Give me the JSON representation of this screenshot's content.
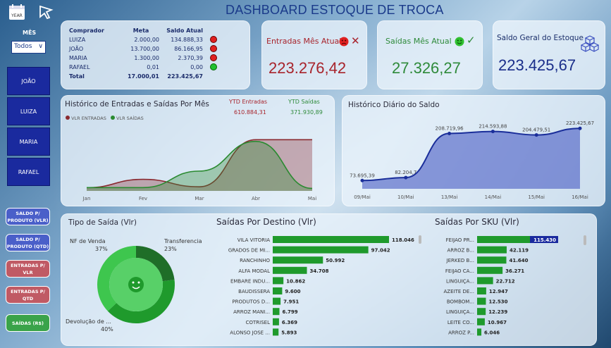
{
  "header": {
    "title": "DASHBOARD ESTOQUE DE TROCA",
    "year_icon_label": "YEAR"
  },
  "filter": {
    "label": "MÊS",
    "value": "Todos"
  },
  "nav": [
    "JOÃO",
    "LUIZA",
    "MARIA",
    "RAFAEL"
  ],
  "side_buttons": [
    {
      "label": "SALDO P/ PRODUTO (VLR)",
      "color": "#4a5fc9"
    },
    {
      "label": "SALDO P/ PRODUTO (QTD)",
      "color": "#4a5fc9"
    },
    {
      "label": "ENTRADAS P/ VLR",
      "color": "#c05a64"
    },
    {
      "label": "ENTRADAS P/ QTD",
      "color": "#c05a64"
    },
    {
      "label": "SAÍDAS (R$)",
      "color": "#3aa34a"
    }
  ],
  "buyers_table": {
    "headers": [
      "Comprador",
      "Meta",
      "Saldo Atual"
    ],
    "rows": [
      {
        "name": "LUIZA",
        "meta": "2.000,00",
        "saldo": "134.888,33",
        "status": "red"
      },
      {
        "name": "JOÃO",
        "meta": "13.700,00",
        "saldo": "86.166,95",
        "status": "red"
      },
      {
        "name": "MARIA",
        "meta": "1.300,00",
        "saldo": "2.370,39",
        "status": "red"
      },
      {
        "name": "RAFAEL",
        "meta": "0,01",
        "saldo": "0,00",
        "status": "green"
      }
    ],
    "total": {
      "label": "Total",
      "meta": "17.000,01",
      "saldo": "223.425,67"
    }
  },
  "kpis": {
    "entradas": {
      "label": "Entradas Mês Atual",
      "value": "223.276,42",
      "color": "#a8242c"
    },
    "saidas": {
      "label": "Saídas Mês Atual",
      "value": "27.326,27",
      "color": "#2e8a3a"
    },
    "saldo": {
      "label": "Saldo Geral do Estoque",
      "value": "223.425,67",
      "color": "#1a2e8a"
    }
  },
  "hist_chart": {
    "title": "Histórico de Entradas e Saídas Por Mês",
    "ytd_entradas_label": "YTD Entradas",
    "ytd_entradas_value": "610.884,31",
    "ytd_saidas_label": "YTD Saídas",
    "ytd_saidas_value": "371.930,89",
    "legend": [
      "VLR ENTRADAS",
      "VLR SAÍDAS"
    ]
  },
  "daily_chart": {
    "title": "Histórico Diário do Saldo"
  },
  "pie": {
    "title": "Tipo de Saída (Vlr)",
    "labels": [
      {
        "name": "NF de Venda",
        "pct": "37%"
      },
      {
        "name": "Transferencia",
        "pct": "23%"
      },
      {
        "name": "Devolução de ...",
        "pct": "40%"
      }
    ]
  },
  "destino": {
    "title": "Saídas Por Destino (Vlr)"
  },
  "sku": {
    "title": "Saídas Por SKU (Vlr)"
  },
  "chart_data": [
    {
      "type": "area",
      "title": "Histórico de Entradas e Saídas Por Mês",
      "categories": [
        "Jan",
        "Fev",
        "Mar",
        "Abr",
        "Mai"
      ],
      "series": [
        {
          "name": "VLR ENTRADAS",
          "values": [
            20000,
            70000,
            25000,
            310000,
            310000
          ],
          "color": "#8a2a30"
        },
        {
          "name": "VLR SAÍDAS",
          "values": [
            20000,
            20000,
            120000,
            300000,
            15000
          ],
          "color": "#2a8a30"
        }
      ]
    },
    {
      "type": "area",
      "title": "Histórico Diário do Saldo",
      "x": [
        "09/Mai",
        "10/Mai",
        "13/Mai",
        "14/Mai",
        "15/Mai",
        "16/Mai"
      ],
      "values": [
        73695.39,
        82204.7,
        208719.96,
        214593.88,
        204479.51,
        223425.67
      ],
      "labels": [
        "73.695,39",
        "82.204,7",
        "208.719,96",
        "214.593,88",
        "204.479,51",
        "223.425,67"
      ]
    },
    {
      "type": "pie",
      "title": "Tipo de Saída (Vlr)",
      "categories": [
        "NF de Venda",
        "Transferencia",
        "Devolução de ..."
      ],
      "values": [
        37,
        23,
        40
      ]
    },
    {
      "type": "bar",
      "title": "Saídas Por Destino (Vlr)",
      "categories": [
        "VILA VITORIA",
        "GRADOS DE MI...",
        "RANCHINHO",
        "ALFA MODAL",
        "EMBARE INDU...",
        "BAUDISSERA",
        "PRODUTOS D...",
        "ARROZ MANI...",
        "COTRISEL",
        "ALONSO JOSE ..."
      ],
      "values": [
        118046,
        97042,
        50992,
        34708,
        10862,
        9600,
        7951,
        6799,
        6369,
        5893
      ],
      "labels": [
        "118.046",
        "97.042",
        "50.992",
        "34.708",
        "10.862",
        "9.600",
        "7.951",
        "6.799",
        "6.369",
        "5.893"
      ]
    },
    {
      "type": "bar",
      "title": "Saídas Por SKU (Vlr)",
      "categories": [
        "FEIJAO PR...",
        "ARROZ B...",
        "JERKED B...",
        "FEIJAO CA...",
        "LINGUIÇA...",
        "AZEITE DE...",
        "BOMBOM...",
        "LINGUIÇA...",
        "LEITE CO...",
        "ARROZ P..."
      ],
      "values": [
        115430,
        42119,
        41640,
        36271,
        22712,
        12947,
        12530,
        12239,
        10967,
        6046
      ],
      "labels": [
        "115.430",
        "42.119",
        "41.640",
        "36.271",
        "22.712",
        "12.947",
        "12.530",
        "12.239",
        "10.967",
        "6.046"
      ]
    }
  ]
}
